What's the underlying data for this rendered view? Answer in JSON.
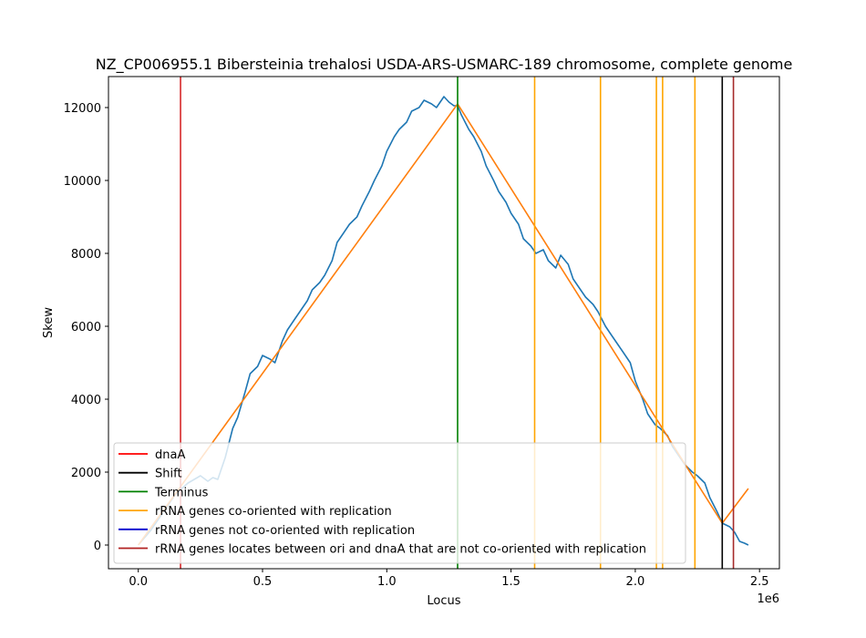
{
  "chart_data": {
    "type": "line",
    "title": "NZ_CP006955.1 Bibersteinia trehalosi USDA-ARS-USMARC-189 chromosome, complete genome",
    "xlabel": "Locus",
    "ylabel": "Skew",
    "x_offset_label": "1e6",
    "xlim": [
      -120000,
      2580000
    ],
    "ylim": [
      -650,
      12850
    ],
    "xticks": [
      0,
      500000,
      1000000,
      1500000,
      2000000,
      2500000
    ],
    "xtick_labels": [
      "0.0",
      "0.5",
      "1.0",
      "1.5",
      "2.0",
      "2.5"
    ],
    "yticks": [
      0,
      2000,
      4000,
      6000,
      8000,
      10000,
      12000
    ],
    "ytick_labels": [
      "0",
      "2000",
      "4000",
      "6000",
      "8000",
      "10000",
      "12000"
    ],
    "grid": false,
    "legend_position": "lower-left",
    "series": [
      {
        "name": "",
        "color": "#1f77b4",
        "x": [
          0,
          50000,
          100000,
          150000,
          200000,
          250000,
          280000,
          300000,
          320000,
          350000,
          380000,
          400000,
          430000,
          450000,
          480000,
          500000,
          530000,
          550000,
          580000,
          600000,
          630000,
          650000,
          680000,
          700000,
          730000,
          750000,
          780000,
          800000,
          830000,
          850000,
          880000,
          900000,
          930000,
          950000,
          980000,
          1000000,
          1030000,
          1050000,
          1080000,
          1100000,
          1130000,
          1150000,
          1180000,
          1200000,
          1230000,
          1250000,
          1270000,
          1285000,
          1300000,
          1330000,
          1350000,
          1380000,
          1400000,
          1430000,
          1450000,
          1480000,
          1500000,
          1530000,
          1550000,
          1580000,
          1600000,
          1630000,
          1650000,
          1680000,
          1700000,
          1730000,
          1750000,
          1780000,
          1800000,
          1830000,
          1850000,
          1880000,
          1900000,
          1930000,
          1950000,
          1980000,
          2000000,
          2030000,
          2050000,
          2080000,
          2100000,
          2130000,
          2150000,
          2180000,
          2200000,
          2230000,
          2250000,
          2280000,
          2300000,
          2330000,
          2350000,
          2380000,
          2400000,
          2420000,
          2440000,
          2455000
        ],
        "values": [
          0,
          400,
          900,
          1400,
          1700,
          1900,
          1750,
          1850,
          1800,
          2400,
          3200,
          3500,
          4200,
          4700,
          4900,
          5200,
          5100,
          5000,
          5600,
          5900,
          6200,
          6400,
          6700,
          7000,
          7200,
          7400,
          7800,
          8300,
          8600,
          8800,
          9000,
          9300,
          9700,
          10000,
          10400,
          10800,
          11200,
          11400,
          11600,
          11900,
          12000,
          12200,
          12100,
          12000,
          12300,
          12150,
          12050,
          12050,
          11800,
          11400,
          11200,
          10800,
          10400,
          10000,
          9700,
          9400,
          9100,
          8800,
          8400,
          8200,
          8000,
          8100,
          7800,
          7600,
          7950,
          7700,
          7300,
          7000,
          6800,
          6600,
          6400,
          6000,
          5800,
          5500,
          5300,
          5000,
          4500,
          4000,
          3600,
          3300,
          3200,
          3000,
          2700,
          2400,
          2200,
          2000,
          1900,
          1700,
          1300,
          900,
          600,
          500,
          350,
          100,
          50,
          0
        ]
      },
      {
        "name": "",
        "color": "#ff7f0e",
        "x": [
          0,
          1285000,
          2350000,
          2455000
        ],
        "values": [
          0,
          12100,
          600,
          1550
        ]
      }
    ],
    "vlines": [
      {
        "x": 170000,
        "color": "#d62728",
        "legend": "dnaA"
      },
      {
        "x": 1285000,
        "color": "#008000",
        "legend": "Terminus"
      },
      {
        "x": 1595000,
        "color": "#ffa500",
        "legend": "rRNA genes co-oriented with replication"
      },
      {
        "x": 1860000,
        "color": "#ffa500",
        "legend": "rRNA genes co-oriented with replication"
      },
      {
        "x": 2085000,
        "color": "#ffa500",
        "legend": "rRNA genes co-oriented with replication"
      },
      {
        "x": 2110000,
        "color": "#ffa500",
        "legend": "rRNA genes co-oriented with replication"
      },
      {
        "x": 2240000,
        "color": "#ffa500",
        "legend": "rRNA genes co-oriented with replication"
      },
      {
        "x": 2350000,
        "color": "#000000",
        "legend": "Shift"
      },
      {
        "x": 2395000,
        "color": "#a52a2a",
        "legend": "rRNA genes locates between ori and dnaA that are not co-oriented with replication"
      }
    ],
    "legend": [
      {
        "label": "dnaA",
        "color": "#ff0000"
      },
      {
        "label": "Shift",
        "color": "#000000"
      },
      {
        "label": "Terminus",
        "color": "#008000"
      },
      {
        "label": "rRNA genes co-oriented with replication",
        "color": "#ffa500"
      },
      {
        "label": "rRNA genes not co-oriented with replication",
        "color": "#0000cd"
      },
      {
        "label": "rRNA genes locates between ori and dnaA that are not co-oriented with replication",
        "color": "#b22222"
      }
    ]
  }
}
